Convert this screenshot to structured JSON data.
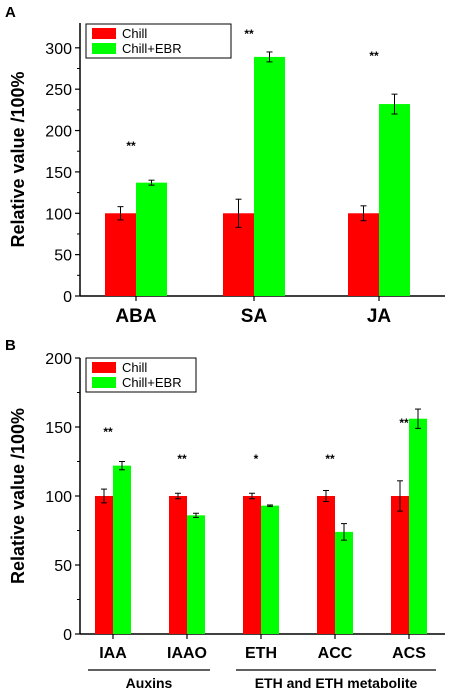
{
  "colors": {
    "chill": "#ff0000",
    "chill_ebr": "#00ff00",
    "axis": "#000000"
  },
  "chart_data": [
    {
      "panel": "A",
      "type": "bar",
      "title": "",
      "ylabel": "Relative value /100%",
      "xlabel": "",
      "ylim": [
        0,
        330
      ],
      "yticks": [
        0,
        50,
        100,
        150,
        200,
        250,
        300
      ],
      "categories": [
        "ABA",
        "SA",
        "JA"
      ],
      "series": [
        {
          "name": "Chill",
          "values": [
            100,
            100,
            100
          ],
          "errors": [
            8,
            17,
            9
          ]
        },
        {
          "name": "Chill+EBR",
          "values": [
            137,
            289,
            232
          ],
          "errors": [
            3,
            6,
            12
          ]
        }
      ],
      "significance": [
        "**",
        "**",
        "**"
      ],
      "legend_position": "top-left",
      "grid": false
    },
    {
      "panel": "B",
      "type": "bar",
      "title": "",
      "ylabel": "Relative value /100%",
      "xlabel": "",
      "ylim": [
        0,
        200
      ],
      "yticks": [
        0,
        50,
        100,
        150,
        200
      ],
      "categories": [
        "IAA",
        "IAAO",
        "ETH",
        "ACC",
        "ACS"
      ],
      "groups": [
        {
          "label": "Auxins",
          "categories": [
            "IAA",
            "IAAO"
          ]
        },
        {
          "label": "ETH and ETH metabolite",
          "categories": [
            "ETH",
            "ACC",
            "ACS"
          ]
        }
      ],
      "series": [
        {
          "name": "Chill",
          "values": [
            100,
            100,
            100,
            100,
            100
          ],
          "errors": [
            5,
            2,
            2,
            4,
            11
          ]
        },
        {
          "name": "Chill+EBR",
          "values": [
            122,
            86,
            93,
            74,
            156
          ],
          "errors": [
            3,
            1.5,
            0.5,
            6,
            7
          ]
        }
      ],
      "significance": [
        "**",
        "**",
        "*",
        "**",
        "**"
      ],
      "legend_position": "top-left",
      "grid": false
    }
  ]
}
